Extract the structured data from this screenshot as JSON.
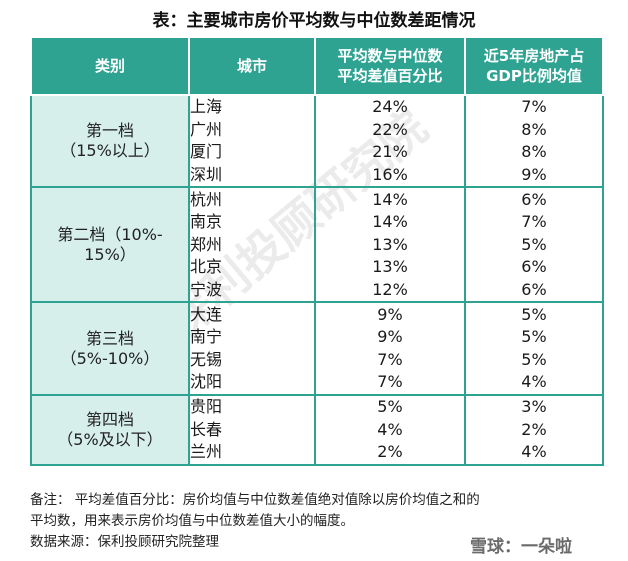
{
  "title": "表：主要城市房价平均数与中位数差距情况",
  "headers": {
    "category": "类别",
    "city": "城市",
    "diff": "平均数与中位数平均差值百分比",
    "gdp": "近5年房地产占GDP比例均值"
  },
  "groups": [
    {
      "tier": "第一档",
      "range": "（15%以上）",
      "rows": [
        {
          "city": "上海",
          "diff": "24%",
          "gdp": "7%"
        },
        {
          "city": "广州",
          "diff": "22%",
          "gdp": "8%"
        },
        {
          "city": "厦门",
          "diff": "21%",
          "gdp": "8%"
        },
        {
          "city": "深圳",
          "diff": "16%",
          "gdp": "9%"
        }
      ]
    },
    {
      "tier": "第二档（10%-",
      "range": "15%）",
      "rows": [
        {
          "city": "杭州",
          "diff": "14%",
          "gdp": "6%"
        },
        {
          "city": "南京",
          "diff": "14%",
          "gdp": "7%"
        },
        {
          "city": "郑州",
          "diff": "13%",
          "gdp": "5%"
        },
        {
          "city": "北京",
          "diff": "13%",
          "gdp": "6%"
        },
        {
          "city": "宁波",
          "diff": "12%",
          "gdp": "6%"
        }
      ]
    },
    {
      "tier": "第三档",
      "range": "（5%-10%）",
      "rows": [
        {
          "city": "大连",
          "diff": "9%",
          "gdp": "5%"
        },
        {
          "city": "南宁",
          "diff": "9%",
          "gdp": "5%"
        },
        {
          "city": "无锡",
          "diff": "7%",
          "gdp": "5%"
        },
        {
          "city": "沈阳",
          "diff": "7%",
          "gdp": "4%"
        }
      ]
    },
    {
      "tier": "第四档",
      "range": "（5%及以下）",
      "rows": [
        {
          "city": "贵阳",
          "diff": "5%",
          "gdp": "3%"
        },
        {
          "city": "长春",
          "diff": "4%",
          "gdp": "2%"
        },
        {
          "city": "兰州",
          "diff": "2%",
          "gdp": "4%"
        }
      ]
    }
  ],
  "notes": {
    "line1": "备注：  平均差值百分比：房价均值与中位数差值绝对值除以房价均值之和的",
    "line2": "平均数，用来表示房价均值与中位数差值大小的幅度。",
    "line3": "数据来源：保利投顾研究院整理"
  },
  "watermark": "保利投顾研究院",
  "logo": "雪球：一朵啦"
}
